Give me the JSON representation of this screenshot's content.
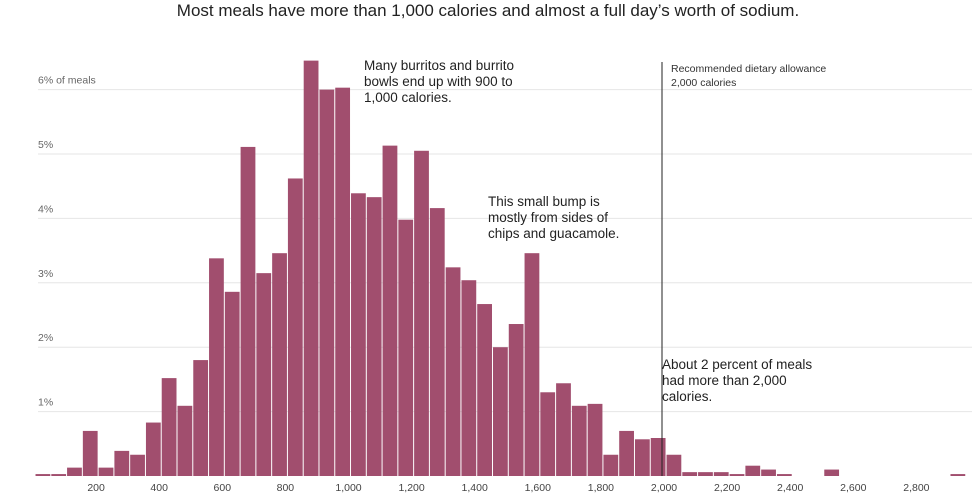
{
  "title": "Most meals have more than 1,000 calories and almost a full day’s worth of sodium.",
  "chart_data": {
    "type": "bar",
    "bin_width": 25,
    "x_start": 0,
    "xlim": [
      0,
      2950
    ],
    "ylim": [
      0,
      6.5
    ],
    "ylabel": "% of meals",
    "grid": true,
    "yticks": [
      {
        "value": 1,
        "label": "1%"
      },
      {
        "value": 2,
        "label": "2%"
      },
      {
        "value": 3,
        "label": "3%"
      },
      {
        "value": 4,
        "label": "4%"
      },
      {
        "value": 5,
        "label": "5%"
      },
      {
        "value": 6,
        "label": "6% of meals"
      }
    ],
    "xticks": [
      {
        "value": 200,
        "label": "200"
      },
      {
        "value": 400,
        "label": "400"
      },
      {
        "value": 600,
        "label": "600"
      },
      {
        "value": 800,
        "label": "800"
      },
      {
        "value": 1000,
        "label": "1,000"
      },
      {
        "value": 1200,
        "label": "1,200"
      },
      {
        "value": 1400,
        "label": "1,400"
      },
      {
        "value": 1600,
        "label": "1,600"
      },
      {
        "value": 1800,
        "label": "1,800"
      },
      {
        "value": 2000,
        "label": "2,000"
      },
      {
        "value": 2200,
        "label": "2,200"
      },
      {
        "value": 2400,
        "label": "2,400"
      },
      {
        "value": 2600,
        "label": "2,600"
      },
      {
        "value": 2800,
        "label": "2,800"
      }
    ],
    "bars": [
      {
        "x": 0,
        "value": 0.03
      },
      {
        "x": 50,
        "value": 0.03
      },
      {
        "x": 100,
        "value": 0.13
      },
      {
        "x": 150,
        "value": 0.7
      },
      {
        "x": 200,
        "value": 0.13
      },
      {
        "x": 250,
        "value": 0.39
      },
      {
        "x": 300,
        "value": 0.33
      },
      {
        "x": 350,
        "value": 0.83
      },
      {
        "x": 400,
        "value": 1.52
      },
      {
        "x": 450,
        "value": 1.09
      },
      {
        "x": 500,
        "value": 1.8
      },
      {
        "x": 550,
        "value": 3.38
      },
      {
        "x": 600,
        "value": 2.86
      },
      {
        "x": 650,
        "value": 5.11
      },
      {
        "x": 700,
        "value": 3.15
      },
      {
        "x": 750,
        "value": 3.46
      },
      {
        "x": 800,
        "value": 4.62
      },
      {
        "x": 850,
        "value": 6.45
      },
      {
        "x": 900,
        "value": 6.0
      },
      {
        "x": 950,
        "value": 6.03
      },
      {
        "x": 1000,
        "value": 4.39
      },
      {
        "x": 1050,
        "value": 4.33
      },
      {
        "x": 1100,
        "value": 5.13
      },
      {
        "x": 1150,
        "value": 3.98
      },
      {
        "x": 1200,
        "value": 5.05
      },
      {
        "x": 1250,
        "value": 4.16
      },
      {
        "x": 1300,
        "value": 3.24
      },
      {
        "x": 1350,
        "value": 3.04
      },
      {
        "x": 1400,
        "value": 2.67
      },
      {
        "x": 1450,
        "value": 2.0
      },
      {
        "x": 1500,
        "value": 2.36
      },
      {
        "x": 1550,
        "value": 3.46
      },
      {
        "x": 1600,
        "value": 1.3
      },
      {
        "x": 1650,
        "value": 1.44
      },
      {
        "x": 1700,
        "value": 1.09
      },
      {
        "x": 1750,
        "value": 1.12
      },
      {
        "x": 1800,
        "value": 0.33
      },
      {
        "x": 1850,
        "value": 0.7
      },
      {
        "x": 1900,
        "value": 0.57
      },
      {
        "x": 1950,
        "value": 0.59
      },
      {
        "x": 2000,
        "value": 0.33
      },
      {
        "x": 2050,
        "value": 0.06
      },
      {
        "x": 2100,
        "value": 0.06
      },
      {
        "x": 2150,
        "value": 0.06
      },
      {
        "x": 2200,
        "value": 0.03
      },
      {
        "x": 2250,
        "value": 0.16
      },
      {
        "x": 2300,
        "value": 0.1
      },
      {
        "x": 2350,
        "value": 0.03
      },
      {
        "x": 2500,
        "value": 0.1
      },
      {
        "x": 2900,
        "value": 0.03
      }
    ],
    "reference_line": {
      "x": 2000,
      "label_lines": [
        "Recommended dietary allowance",
        "2,000 calories"
      ]
    },
    "annotations": [
      {
        "lines": [
          "Many burritos and burrito",
          "bowls end up with 900 to",
          "1,000 calories."
        ]
      },
      {
        "lines": [
          "This small bump is",
          "mostly from sides of",
          "chips and guacamole."
        ]
      },
      {
        "lines": [
          "About 2 percent of meals",
          "had more than 2,000",
          "calories."
        ]
      }
    ],
    "colors": {
      "bar": "#a14e6e",
      "grid": "#e6e6e6",
      "reference_line": "#222222"
    }
  }
}
